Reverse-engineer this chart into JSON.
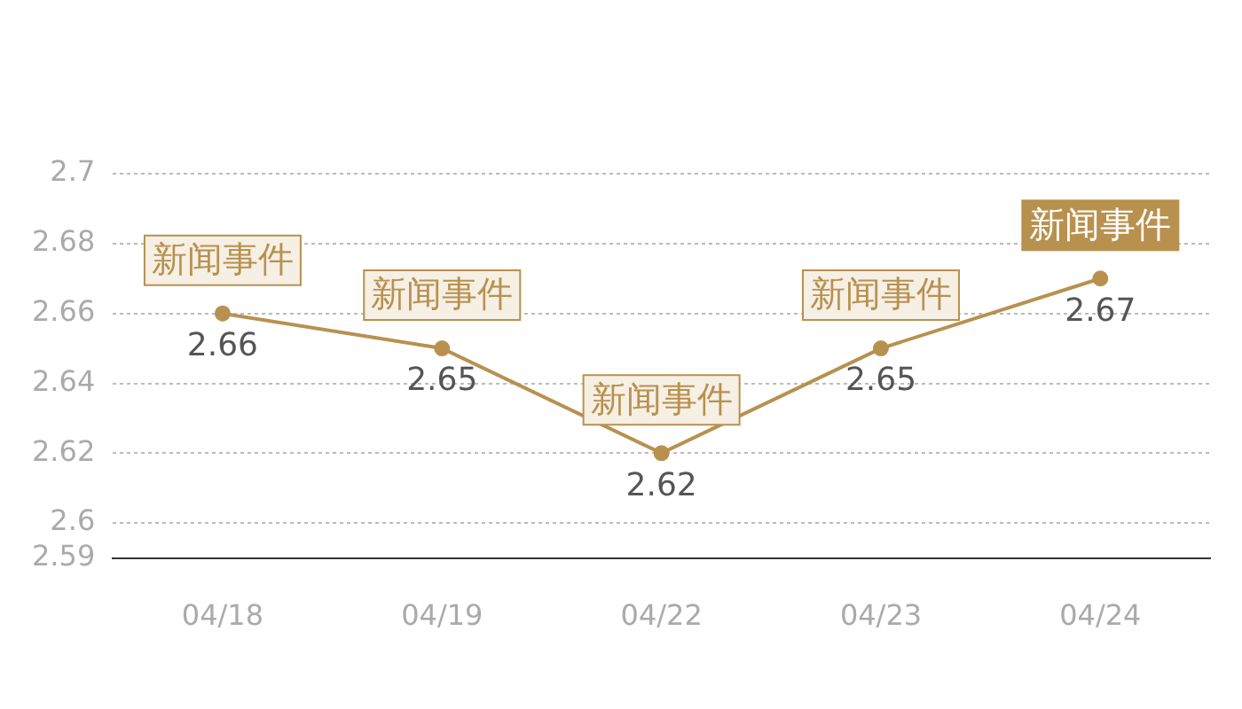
{
  "chart_data": {
    "type": "line",
    "categories": [
      "04/18",
      "04/19",
      "04/22",
      "04/23",
      "04/24"
    ],
    "series": [
      {
        "color": "#b8914f",
        "values": [
          2.66,
          2.65,
          2.62,
          2.65,
          2.67
        ]
      }
    ],
    "ylim": [
      2.59,
      2.7
    ],
    "yticks": [
      2.59,
      2.6,
      2.62,
      2.64,
      2.66,
      2.68,
      2.7
    ],
    "grid": "y",
    "marker": "circle",
    "line_style": "solid",
    "data_labels": true,
    "annotations": [
      {
        "text": "新闻事件",
        "x": "04/18",
        "y": 2.66
      },
      {
        "text": "新闻事件",
        "x": "04/19",
        "y": 2.65
      },
      {
        "text": "新闻事件",
        "x": "04/22",
        "y": 2.62
      },
      {
        "text": "新闻事件",
        "x": "04/23",
        "y": 2.65
      },
      {
        "text": "新闻事件",
        "x": "04/24",
        "y": 2.67
      }
    ]
  }
}
